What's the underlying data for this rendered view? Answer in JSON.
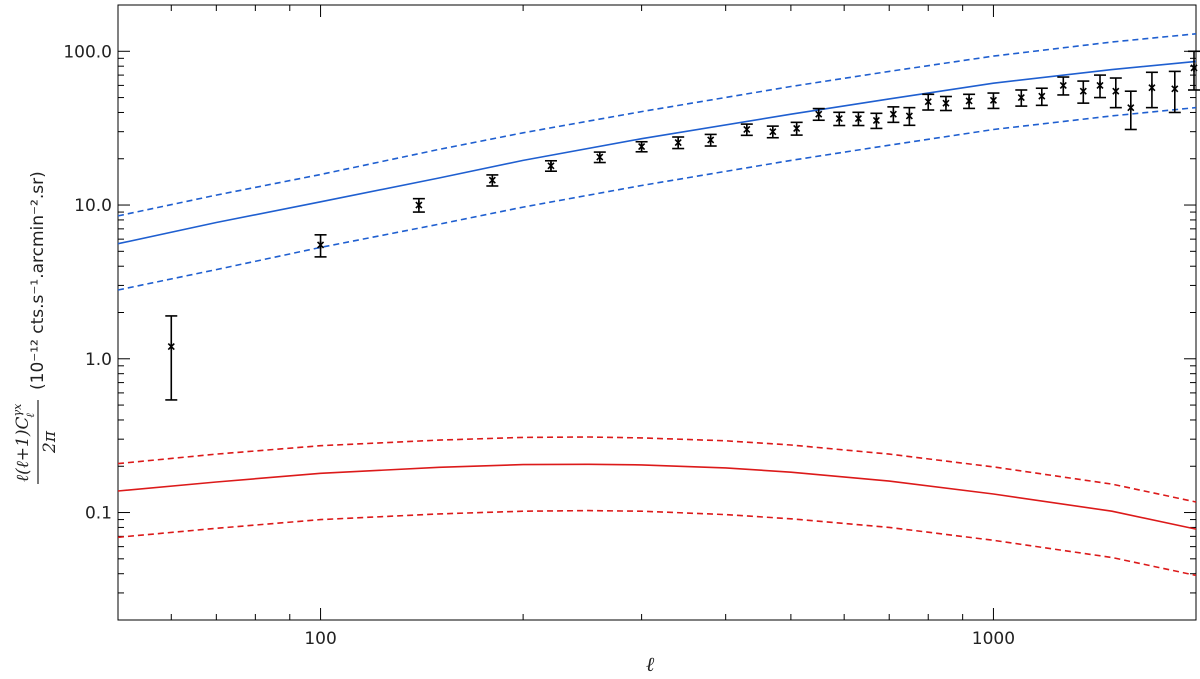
{
  "chart_data": {
    "type": "scatter",
    "title": "",
    "xlabel": "ℓ",
    "ylabel": {
      "fraction_numerator": "ℓ(ℓ+1)C",
      "fraction_numerator_superscript": "γx",
      "fraction_numerator_subscript": "ℓ",
      "fraction_denominator": "2π",
      "units": "(10⁻¹² cts.s⁻¹.arcmin⁻².sr)"
    },
    "x_scale": "log",
    "y_scale": "log",
    "xlim": [
      50,
      2000
    ],
    "ylim": [
      0.02,
      200
    ],
    "x_ticks": [
      100,
      1000
    ],
    "x_tick_labels": [
      "100",
      "1000"
    ],
    "y_ticks": [
      0.1,
      1,
      10,
      100
    ],
    "y_tick_labels": [
      "0.1",
      "1.0",
      "10.0",
      "100.0"
    ],
    "grid": false,
    "legend": false,
    "series": [
      {
        "style": "errorbar-points",
        "color": "#000000",
        "x": [
          60,
          100,
          140,
          180,
          220,
          260,
          300,
          340,
          380,
          430,
          470,
          510,
          550,
          590,
          630,
          670,
          710,
          750,
          800,
          850,
          920,
          1000,
          1100,
          1180,
          1270,
          1360,
          1440,
          1520,
          1600,
          1720,
          1860,
          2000
        ],
        "y": [
          1.2,
          5.5,
          10.0,
          14.5,
          18.0,
          20.5,
          24.0,
          25.5,
          26.5,
          31.0,
          30.0,
          31.5,
          39.0,
          36.5,
          36.5,
          35.5,
          39.0,
          38.0,
          47.0,
          46.0,
          47.5,
          48.0,
          50.0,
          51.0,
          60.0,
          55.0,
          60.0,
          55.0,
          43.0,
          58.0,
          57.0,
          78.0
        ],
        "yerr_low": [
          0.66,
          0.9,
          1.0,
          1.2,
          1.4,
          1.6,
          1.8,
          2.2,
          2.3,
          2.6,
          2.6,
          3.0,
          3.4,
          3.6,
          3.6,
          4.0,
          4.5,
          5.0,
          5.5,
          4.8,
          5.0,
          5.5,
          6.0,
          6.5,
          8.0,
          9.0,
          10.0,
          12.0,
          12.0,
          15.0,
          17.0,
          22.0
        ],
        "yerr_high": [
          0.7,
          0.9,
          1.0,
          1.2,
          1.4,
          1.6,
          1.8,
          2.2,
          2.3,
          2.6,
          2.6,
          3.0,
          3.4,
          3.6,
          3.6,
          4.0,
          4.5,
          5.0,
          5.5,
          4.8,
          5.0,
          5.5,
          6.0,
          6.5,
          8.0,
          9.0,
          10.0,
          12.0,
          12.0,
          15.0,
          17.0,
          22.0
        ]
      },
      {
        "style": "solid",
        "color": "#1f5fd0",
        "x": [
          50,
          70,
          100,
          150,
          200,
          300,
          500,
          700,
          1000,
          1500,
          2000
        ],
        "y": [
          5.6,
          7.7,
          10.5,
          15.0,
          19.5,
          27.0,
          39.0,
          49.0,
          62.0,
          76.0,
          86.0
        ]
      },
      {
        "style": "dashed",
        "color": "#1f5fd0",
        "x": [
          50,
          70,
          100,
          150,
          200,
          300,
          500,
          700,
          1000,
          1500,
          2000
        ],
        "y": [
          8.5,
          11.6,
          15.8,
          23.0,
          29.5,
          40.5,
          59.0,
          74.0,
          93.0,
          115.0,
          130.0
        ]
      },
      {
        "style": "dashed",
        "color": "#1f5fd0",
        "x": [
          50,
          70,
          100,
          150,
          200,
          300,
          500,
          700,
          1000,
          1500,
          2000
        ],
        "y": [
          2.8,
          3.8,
          5.3,
          7.5,
          9.7,
          13.4,
          19.5,
          24.5,
          31.0,
          38.0,
          43.0
        ]
      },
      {
        "style": "solid",
        "color": "#dc1a1a",
        "x": [
          50,
          70,
          100,
          150,
          200,
          250,
          300,
          400,
          500,
          700,
          1000,
          1500,
          2000
        ],
        "y": [
          0.138,
          0.158,
          0.18,
          0.197,
          0.205,
          0.206,
          0.204,
          0.195,
          0.183,
          0.16,
          0.132,
          0.102,
          0.078
        ]
      },
      {
        "style": "dashed",
        "color": "#dc1a1a",
        "x": [
          50,
          70,
          100,
          150,
          200,
          250,
          300,
          400,
          500,
          700,
          1000,
          1500,
          2000
        ],
        "y": [
          0.208,
          0.24,
          0.272,
          0.296,
          0.308,
          0.31,
          0.306,
          0.293,
          0.275,
          0.24,
          0.198,
          0.153,
          0.117
        ]
      },
      {
        "style": "dashed",
        "color": "#dc1a1a",
        "x": [
          50,
          70,
          100,
          150,
          200,
          250,
          300,
          400,
          500,
          700,
          1000,
          1500,
          2000
        ],
        "y": [
          0.069,
          0.079,
          0.09,
          0.098,
          0.102,
          0.103,
          0.102,
          0.097,
          0.091,
          0.08,
          0.066,
          0.051,
          0.039
        ]
      }
    ]
  }
}
